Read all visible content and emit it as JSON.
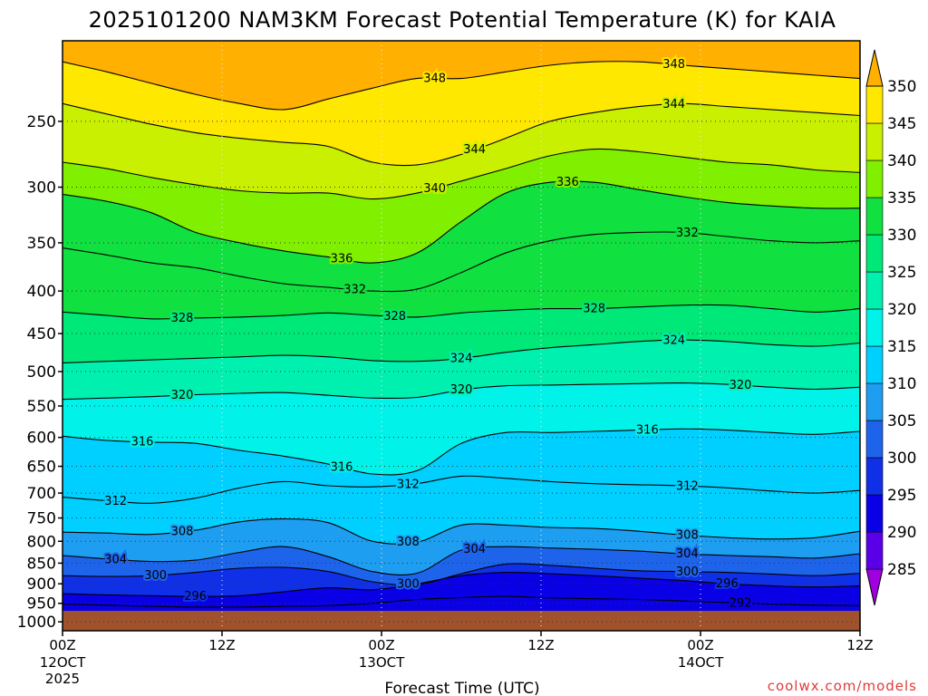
{
  "chart_data": {
    "type": "heatmap",
    "title": "2025101200 NAM3KM Forecast Potential Temperature (K) for KAIA",
    "xlabel": "Forecast Time (UTC)",
    "ylabel": "",
    "credit": "coolwx.com/models",
    "x_ticks": [
      {
        "h": 0,
        "label": "00Z",
        "sub": "12OCT",
        "sub2": "2025"
      },
      {
        "h": 12,
        "label": "12Z"
      },
      {
        "h": 24,
        "label": "00Z",
        "sub": "13OCT"
      },
      {
        "h": 36,
        "label": "12Z"
      },
      {
        "h": 48,
        "label": "00Z",
        "sub": "14OCT"
      },
      {
        "h": 60,
        "label": "12Z"
      }
    ],
    "xlim": [
      0,
      60
    ],
    "y_ticks": [
      250,
      300,
      350,
      400,
      450,
      500,
      550,
      600,
      650,
      700,
      750,
      800,
      850,
      900,
      950,
      1000
    ],
    "ylim_hpa": [
      200,
      1025
    ],
    "surface_pressure_hpa": 970,
    "colorbar": {
      "levels": [
        285,
        290,
        295,
        300,
        305,
        310,
        315,
        320,
        325,
        330,
        335,
        340,
        345,
        350
      ],
      "colors": [
        "#a000e0",
        "#5a00e8",
        "#0a00e6",
        "#1030e8",
        "#1e64ea",
        "#1e9ef0",
        "#00d0ff",
        "#00f2e8",
        "#00f0b0",
        "#00e878",
        "#10e040",
        "#80f000",
        "#c8f000",
        "#ffe800",
        "#ffb000"
      ]
    },
    "isentropes": [
      {
        "theta": 292,
        "p": [
          952,
          955,
          958,
          960,
          960,
          958,
          956,
          950,
          940,
          935,
          932,
          936,
          938,
          940,
          944,
          948,
          952,
          955,
          956
        ],
        "labels": [
          {
            "h": 51,
            "text": "292"
          }
        ]
      },
      {
        "theta": 296,
        "p": [
          925,
          928,
          930,
          932,
          930,
          920,
          910,
          915,
          900,
          880,
          872,
          875,
          880,
          886,
          892,
          900,
          905,
          908,
          905
        ],
        "labels": [
          {
            "h": 10,
            "text": "296"
          },
          {
            "h": 50,
            "text": "296"
          }
        ]
      },
      {
        "theta": 300,
        "p": [
          880,
          882,
          880,
          872,
          862,
          860,
          870,
          895,
          902,
          875,
          852,
          855,
          862,
          868,
          870,
          872,
          876,
          880,
          874
        ],
        "labels": [
          {
            "h": 7,
            "text": "300"
          },
          {
            "h": 26,
            "text": "300"
          },
          {
            "h": 47,
            "text": "300"
          }
        ]
      },
      {
        "theta": 304,
        "p": [
          832,
          840,
          846,
          843,
          825,
          812,
          835,
          870,
          874,
          820,
          812,
          815,
          818,
          822,
          828,
          832,
          835,
          838,
          828
        ],
        "labels": [
          {
            "h": 4,
            "text": "304"
          },
          {
            "h": 31,
            "text": "304"
          },
          {
            "h": 47,
            "text": "304"
          }
        ]
      },
      {
        "theta": 308,
        "p": [
          780,
          782,
          785,
          776,
          758,
          752,
          760,
          800,
          802,
          765,
          765,
          770,
          772,
          778,
          786,
          792,
          795,
          792,
          778
        ],
        "labels": [
          {
            "h": 9,
            "text": "308"
          },
          {
            "h": 26,
            "text": "308"
          },
          {
            "h": 47,
            "text": "308"
          }
        ]
      },
      {
        "theta": 312,
        "p": [
          708,
          715,
          720,
          710,
          690,
          678,
          686,
          688,
          682,
          668,
          672,
          678,
          682,
          684,
          686,
          690,
          696,
          700,
          695
        ],
        "labels": [
          {
            "h": 4,
            "text": "312"
          },
          {
            "h": 26,
            "text": "312"
          },
          {
            "h": 47,
            "text": "312"
          }
        ]
      },
      {
        "theta": 316,
        "p": [
          598,
          605,
          608,
          610,
          622,
          632,
          646,
          664,
          658,
          610,
          592,
          592,
          590,
          588,
          586,
          588,
          592,
          595,
          590
        ],
        "labels": [
          {
            "h": 6,
            "text": "316"
          },
          {
            "h": 21,
            "text": "316"
          },
          {
            "h": 44,
            "text": "316"
          }
        ]
      },
      {
        "theta": 320,
        "p": [
          540,
          538,
          536,
          533,
          531,
          530,
          534,
          538,
          537,
          526,
          520,
          519,
          518,
          517,
          516,
          518,
          522,
          525,
          522
        ],
        "labels": [
          {
            "h": 9,
            "text": "320"
          },
          {
            "h": 30,
            "text": "320"
          },
          {
            "h": 51,
            "text": "320"
          }
        ]
      },
      {
        "theta": 324,
        "p": [
          488,
          486,
          484,
          482,
          480,
          478,
          480,
          485,
          486,
          482,
          474,
          468,
          464,
          460,
          458,
          460,
          464,
          466,
          462
        ],
        "labels": [
          {
            "h": 30,
            "text": "324"
          },
          {
            "h": 46,
            "text": "324"
          }
        ]
      },
      {
        "theta": 328,
        "p": [
          424,
          428,
          432,
          431,
          430,
          428,
          425,
          428,
          430,
          425,
          422,
          420,
          420,
          418,
          416,
          416,
          420,
          424,
          420
        ],
        "labels": [
          {
            "h": 9,
            "text": "328"
          },
          {
            "h": 25,
            "text": "328"
          },
          {
            "h": 40,
            "text": "328"
          }
        ]
      },
      {
        "theta": 332,
        "p": [
          355,
          362,
          370,
          375,
          384,
          392,
          396,
          400,
          398,
          380,
          360,
          348,
          342,
          340,
          340,
          344,
          348,
          350,
          348
        ],
        "labels": [
          {
            "h": 22,
            "text": "332"
          },
          {
            "h": 47,
            "text": "332"
          }
        ]
      },
      {
        "theta": 336,
        "p": [
          306,
          312,
          322,
          340,
          350,
          358,
          364,
          370,
          360,
          330,
          305,
          296,
          296,
          302,
          308,
          313,
          316,
          318,
          318
        ],
        "labels": [
          {
            "h": 21,
            "text": "336"
          },
          {
            "h": 38,
            "text": "336"
          }
        ]
      },
      {
        "theta": 340,
        "p": [
          280,
          285,
          292,
          298,
          303,
          305,
          305,
          310,
          305,
          295,
          285,
          275,
          270,
          272,
          276,
          280,
          282,
          286,
          288
        ],
        "labels": [
          {
            "h": 28,
            "text": "340"
          }
        ]
      },
      {
        "theta": 344,
        "p": [
          238,
          245,
          252,
          258,
          262,
          265,
          268,
          280,
          282,
          274,
          262,
          250,
          244,
          240,
          238,
          240,
          242,
          244,
          246
        ],
        "labels": [
          {
            "h": 31,
            "text": "344"
          },
          {
            "h": 46,
            "text": "344"
          }
        ]
      },
      {
        "theta": 348,
        "p": [
          212,
          218,
          225,
          232,
          238,
          242,
          235,
          228,
          222,
          222,
          218,
          214,
          212,
          212,
          214,
          216,
          218,
          220,
          222
        ],
        "labels": [
          {
            "h": 28,
            "text": "348"
          },
          {
            "h": 46,
            "text": "348"
          }
        ]
      }
    ]
  }
}
